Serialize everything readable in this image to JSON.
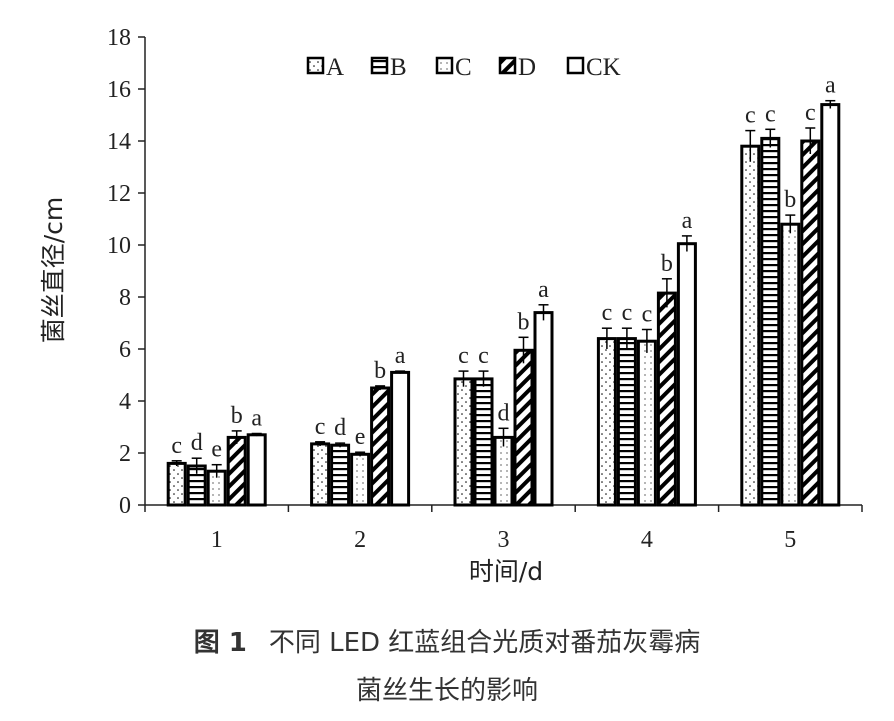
{
  "chart_data": {
    "type": "bar",
    "categories": [
      "1",
      "2",
      "3",
      "4",
      "5"
    ],
    "series": [
      {
        "name": "A",
        "values": [
          1.6,
          2.35,
          4.85,
          6.4,
          13.8
        ],
        "errors": [
          0.1,
          0.08,
          0.3,
          0.4,
          0.6
        ],
        "letters": [
          "c",
          "c",
          "c",
          "c",
          "c"
        ],
        "pattern": "pat-a"
      },
      {
        "name": "B",
        "values": [
          1.5,
          2.3,
          4.85,
          6.4,
          14.1
        ],
        "errors": [
          0.3,
          0.08,
          0.3,
          0.4,
          0.35
        ],
        "letters": [
          "d",
          "d",
          "c",
          "c",
          "c"
        ],
        "pattern": "pat-b"
      },
      {
        "name": "C",
        "values": [
          1.3,
          1.95,
          2.6,
          6.3,
          10.8
        ],
        "errors": [
          0.25,
          0.08,
          0.35,
          0.45,
          0.35
        ],
        "letters": [
          "e",
          "e",
          "d",
          "c",
          "b"
        ],
        "pattern": "pat-c"
      },
      {
        "name": "D",
        "values": [
          2.6,
          4.5,
          5.95,
          8.15,
          14.0
        ],
        "errors": [
          0.25,
          0.08,
          0.5,
          0.55,
          0.5
        ],
        "letters": [
          "b",
          "b",
          "b",
          "b",
          "c"
        ],
        "pattern": "pat-d"
      },
      {
        "name": "CK",
        "values": [
          2.7,
          5.1,
          7.4,
          10.05,
          15.4
        ],
        "errors": [
          0.05,
          0.05,
          0.3,
          0.3,
          0.15
        ],
        "letters": [
          "a",
          "a",
          "a",
          "a",
          "a"
        ],
        "pattern": "pat-ck"
      }
    ],
    "xlabel": "时间/d",
    "ylabel": "菌丝直径/cm",
    "ylim": [
      0,
      18
    ],
    "yticks": [
      0,
      2,
      4,
      6,
      8,
      10,
      12,
      14,
      16,
      18
    ],
    "legend_position": "top-center",
    "grid": false
  },
  "caption": {
    "figure_number": "图 1",
    "line1": "不同 LED 红蓝组合光质对番茄灰霉病",
    "line2": "菌丝生长的影响"
  }
}
